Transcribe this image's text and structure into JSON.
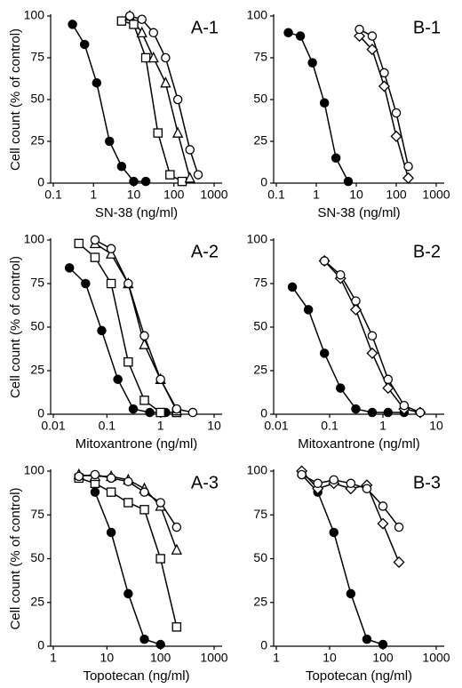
{
  "chart_data": [
    {
      "type": "line",
      "title": "A-1",
      "xlabel": "SN-38 (ng/ml)",
      "ylabel": "Cell count (% of control)",
      "xscale": "log",
      "xlim": [
        0.1,
        1000
      ],
      "xticks": [
        0.1,
        1,
        10,
        100,
        1000
      ],
      "ylim": [
        0,
        100
      ],
      "yticks": [
        0,
        25,
        50,
        75,
        100
      ],
      "series": [
        {
          "marker": "circle-filled",
          "color": "#000000",
          "x": [
            0.3,
            0.6,
            1.2,
            2.5,
            5,
            10,
            20
          ],
          "values": [
            95,
            83,
            60,
            25,
            10,
            1,
            1
          ]
        },
        {
          "marker": "square",
          "color": "#000000",
          "x": [
            5,
            10,
            20,
            40,
            80,
            160
          ],
          "values": [
            97,
            95,
            75,
            30,
            5,
            1
          ]
        },
        {
          "marker": "triangle",
          "color": "#000000",
          "x": [
            8,
            16,
            31,
            62,
            125,
            250
          ],
          "values": [
            100,
            90,
            75,
            60,
            30,
            3
          ]
        },
        {
          "marker": "circle",
          "color": "#000000",
          "x": [
            8,
            16,
            31,
            62,
            125,
            250,
            400
          ],
          "values": [
            100,
            98,
            90,
            75,
            50,
            20,
            5
          ]
        }
      ]
    },
    {
      "type": "line",
      "title": "B-1",
      "xlabel": "SN-38 (ng/ml)",
      "xscale": "log",
      "xlim": [
        0.1,
        1000
      ],
      "xticks": [
        0.1,
        1,
        10,
        100,
        1000
      ],
      "ylim": [
        0,
        100
      ],
      "yticks": [
        0,
        25,
        50,
        75,
        100
      ],
      "series": [
        {
          "marker": "circle-filled",
          "color": "#000000",
          "x": [
            0.2,
            0.4,
            0.8,
            1.6,
            3.1,
            6.3
          ],
          "values": [
            90,
            88,
            72,
            48,
            15,
            1
          ]
        },
        {
          "marker": "diamond",
          "color": "#000000",
          "x": [
            12,
            25,
            50,
            100,
            200
          ],
          "values": [
            88,
            80,
            58,
            28,
            3
          ]
        },
        {
          "marker": "circle",
          "color": "#000000",
          "x": [
            12,
            25,
            50,
            100,
            200
          ],
          "values": [
            92,
            88,
            66,
            42,
            10
          ]
        }
      ]
    },
    {
      "type": "line",
      "title": "A-2",
      "xlabel": "Mitoxantrone (ng/ml)",
      "ylabel": "Cell count (% of control)",
      "xscale": "log",
      "xlim": [
        0.01,
        10
      ],
      "xticks": [
        0.01,
        0.1,
        1,
        10
      ],
      "ylim": [
        0,
        100
      ],
      "yticks": [
        0,
        25,
        50,
        75,
        100
      ],
      "series": [
        {
          "marker": "circle-filled",
          "color": "#000000",
          "x": [
            0.02,
            0.04,
            0.08,
            0.16,
            0.31,
            0.63,
            1.25
          ],
          "values": [
            84,
            75,
            48,
            20,
            3,
            1,
            1
          ]
        },
        {
          "marker": "square",
          "color": "#000000",
          "x": [
            0.03,
            0.06,
            0.12,
            0.25,
            0.5,
            1,
            2
          ],
          "values": [
            98,
            90,
            75,
            30,
            8,
            1,
            1
          ]
        },
        {
          "marker": "triangle",
          "color": "#000000",
          "x": [
            0.06,
            0.12,
            0.25,
            0.5,
            1,
            2
          ],
          "values": [
            98,
            92,
            75,
            40,
            20,
            2
          ]
        },
        {
          "marker": "circle",
          "color": "#000000",
          "x": [
            0.06,
            0.12,
            0.25,
            0.5,
            1,
            2,
            4
          ],
          "values": [
            100,
            95,
            75,
            45,
            20,
            3,
            1
          ]
        }
      ]
    },
    {
      "type": "line",
      "title": "B-2",
      "xlabel": "Mitoxantrone (ng/ml)",
      "xscale": "log",
      "xlim": [
        0.01,
        10
      ],
      "xticks": [
        0.01,
        0.1,
        1,
        10
      ],
      "ylim": [
        0,
        100
      ],
      "yticks": [
        0,
        25,
        50,
        75,
        100
      ],
      "series": [
        {
          "marker": "circle-filled",
          "color": "#000000",
          "x": [
            0.02,
            0.04,
            0.08,
            0.16,
            0.31,
            0.63,
            1.25,
            2.5
          ],
          "values": [
            73,
            60,
            35,
            15,
            3,
            1,
            1,
            1
          ]
        },
        {
          "marker": "diamond",
          "color": "#000000",
          "x": [
            0.08,
            0.16,
            0.31,
            0.63,
            1.25,
            2.5,
            5
          ],
          "values": [
            88,
            78,
            60,
            35,
            15,
            3,
            1
          ]
        },
        {
          "marker": "circle",
          "color": "#000000",
          "x": [
            0.08,
            0.16,
            0.31,
            0.63,
            1.25,
            2.5,
            5
          ],
          "values": [
            88,
            80,
            65,
            45,
            20,
            5,
            1
          ]
        }
      ]
    },
    {
      "type": "line",
      "title": "A-3",
      "xlabel": "Topotecan (ng/ml)",
      "ylabel": "Cell count (% of control)",
      "xscale": "log",
      "xlim": [
        1,
        1000
      ],
      "xticks": [
        1,
        10,
        100,
        1000
      ],
      "ylim": [
        0,
        100
      ],
      "yticks": [
        0,
        25,
        50,
        75,
        100
      ],
      "series": [
        {
          "marker": "circle-filled",
          "color": "#000000",
          "x": [
            6,
            12,
            25,
            50,
            100
          ],
          "values": [
            88,
            65,
            30,
            4,
            1
          ]
        },
        {
          "marker": "square",
          "color": "#000000",
          "x": [
            3,
            6,
            12,
            25,
            50,
            100,
            200
          ],
          "values": [
            96,
            93,
            88,
            82,
            78,
            50,
            11
          ]
        },
        {
          "marker": "triangle",
          "color": "#000000",
          "x": [
            3,
            6,
            12,
            25,
            50,
            100,
            200
          ],
          "values": [
            98,
            97,
            97,
            95,
            90,
            80,
            55
          ]
        },
        {
          "marker": "circle",
          "color": "#000000",
          "x": [
            3,
            6,
            12,
            25,
            50,
            100,
            200
          ],
          "values": [
            97,
            98,
            96,
            94,
            88,
            82,
            68
          ]
        }
      ]
    },
    {
      "type": "line",
      "title": "B-3",
      "xlabel": "Topotecan (ng/ml)",
      "xscale": "log",
      "xlim": [
        1,
        1000
      ],
      "xticks": [
        1,
        10,
        100,
        1000
      ],
      "ylim": [
        0,
        100
      ],
      "yticks": [
        0,
        25,
        50,
        75,
        100
      ],
      "series": [
        {
          "marker": "circle-filled",
          "color": "#000000",
          "x": [
            3,
            6,
            12,
            25,
            50,
            100
          ],
          "values": [
            98,
            88,
            65,
            30,
            4,
            1
          ]
        },
        {
          "marker": "diamond",
          "color": "#000000",
          "x": [
            3,
            6,
            12,
            25,
            50,
            100,
            200
          ],
          "values": [
            100,
            90,
            93,
            90,
            92,
            70,
            48
          ]
        },
        {
          "marker": "circle",
          "color": "#000000",
          "x": [
            3,
            6,
            12,
            25,
            50,
            100,
            200
          ],
          "values": [
            98,
            93,
            95,
            93,
            90,
            80,
            68
          ]
        }
      ]
    }
  ]
}
